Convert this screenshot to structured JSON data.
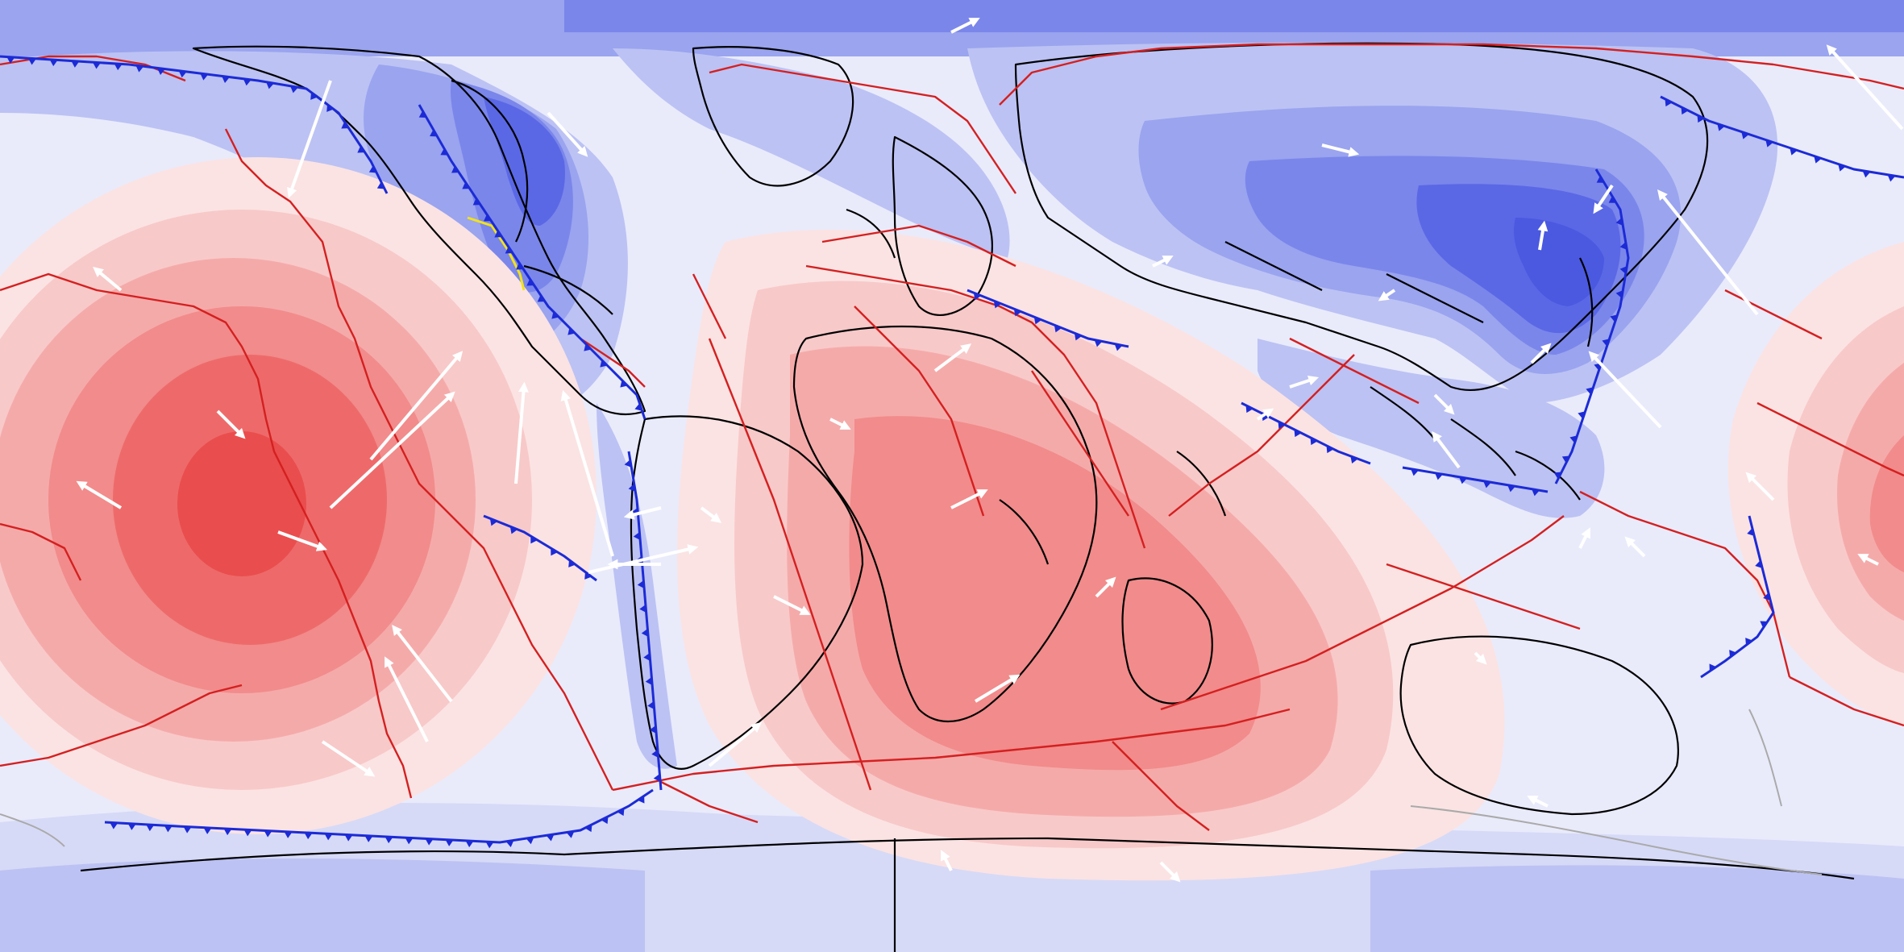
{
  "map": {
    "kind": "global-equirectangular-plate-reconstruction",
    "legend": null,
    "colors": {
      "background": "#e9ebfb",
      "blue_levels": [
        "#d6daf7",
        "#bcc2f3",
        "#9aa4ef",
        "#7a86ea",
        "#5a68e6",
        "#4a59e0"
      ],
      "red_levels": [
        "#fbe3e3",
        "#f8c9c9",
        "#f5aaaa",
        "#f28b8b",
        "#ee6a6a",
        "#ea4d4d"
      ],
      "plate_boundary": "#d42020",
      "subduction_zone": "#1c2bd6",
      "coastline": "#000000",
      "velocity_vector": "#ffffff",
      "highlight_segment": "#f2e21a",
      "faded_outline": "#aaaaaa"
    },
    "icons": {
      "vector": "arrow-icon",
      "subduction": "triangle-tooth-icon"
    }
  }
}
